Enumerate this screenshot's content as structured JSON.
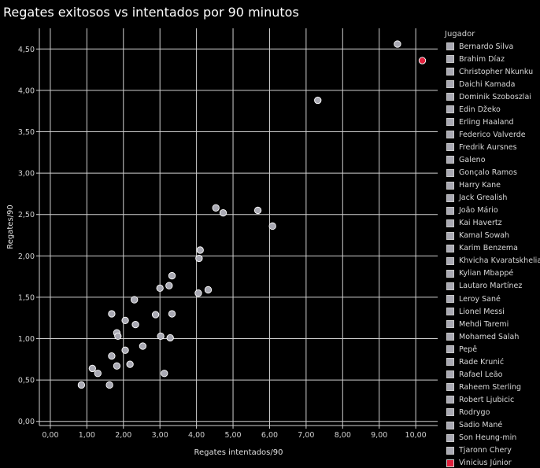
{
  "chart_data": {
    "type": "scatter",
    "title": "Regates exitosos vs intentados por 90 minutos",
    "xlabel": "Regates intentados/90",
    "ylabel": "Regates/90",
    "xlim": [
      -0.3,
      10.6
    ],
    "ylim": [
      -0.05,
      4.75
    ],
    "xticks": [
      "0,00",
      "1,00",
      "2,00",
      "3,00",
      "4,00",
      "5,00",
      "6,00",
      "7,00",
      "8,00",
      "9,00",
      "10,00"
    ],
    "yticks": [
      "0,00",
      "0,50",
      "1,00",
      "1,50",
      "2,00",
      "2,50",
      "3,00",
      "3,50",
      "4,00",
      "4,50"
    ],
    "grid": true,
    "legend_title": "Jugador",
    "legend_position": "right",
    "colors": {
      "default": "#a9a9b3",
      "highlight": "#e0203c",
      "grid": "#d0d0d0",
      "background": "#000000"
    },
    "players": [
      "Bernardo Silva",
      "Brahim Díaz",
      "Christopher Nkunku",
      "Daichi Kamada",
      "Dominik Szoboszlai",
      "Edin Džeko",
      "Erling Haaland",
      "Federico Valverde",
      "Fredrik Aursnes",
      "Galeno",
      "Gonçalo Ramos",
      "Harry Kane",
      "Jack Grealish",
      "João Mário",
      "Kai Havertz",
      "Kamal Sowah",
      "Karim Benzema",
      "Khvicha Kvaratskhelia",
      "Kylian Mbappé",
      "Lautaro Martínez",
      "Leroy Sané",
      "Lionel Messi",
      "Mehdi Taremi",
      "Mohamed Salah",
      "Pepê",
      "Rade Krunić",
      "Rafael Leão",
      "Raheem Sterling",
      "Robert Ljubicic",
      "Rodrygo",
      "Sadio Mané",
      "Son Heung-min",
      "Tjaronn Chery",
      "Vinicius Júnior"
    ],
    "highlighted": [
      "Vinicius Júnior"
    ],
    "points": [
      {
        "x": 9.5,
        "y": 4.56
      },
      {
        "x": 10.18,
        "y": 4.36,
        "highlight": true
      },
      {
        "x": 7.32,
        "y": 3.88
      },
      {
        "x": 4.53,
        "y": 2.58
      },
      {
        "x": 4.73,
        "y": 2.52
      },
      {
        "x": 5.68,
        "y": 2.55
      },
      {
        "x": 6.08,
        "y": 2.36
      },
      {
        "x": 4.1,
        "y": 2.07
      },
      {
        "x": 4.07,
        "y": 1.97
      },
      {
        "x": 3.33,
        "y": 1.76
      },
      {
        "x": 3.25,
        "y": 1.64
      },
      {
        "x": 3.0,
        "y": 1.61
      },
      {
        "x": 4.32,
        "y": 1.59
      },
      {
        "x": 4.05,
        "y": 1.55
      },
      {
        "x": 2.3,
        "y": 1.47
      },
      {
        "x": 1.68,
        "y": 1.3
      },
      {
        "x": 2.88,
        "y": 1.29
      },
      {
        "x": 3.33,
        "y": 1.3
      },
      {
        "x": 2.05,
        "y": 1.22
      },
      {
        "x": 2.33,
        "y": 1.17
      },
      {
        "x": 1.82,
        "y": 1.07
      },
      {
        "x": 1.85,
        "y": 1.03
      },
      {
        "x": 3.02,
        "y": 1.03
      },
      {
        "x": 3.28,
        "y": 1.01
      },
      {
        "x": 2.53,
        "y": 0.91
      },
      {
        "x": 2.05,
        "y": 0.86
      },
      {
        "x": 1.68,
        "y": 0.79
      },
      {
        "x": 1.82,
        "y": 0.67
      },
      {
        "x": 2.18,
        "y": 0.69
      },
      {
        "x": 1.15,
        "y": 0.64
      },
      {
        "x": 1.3,
        "y": 0.58
      },
      {
        "x": 3.12,
        "y": 0.58
      },
      {
        "x": 0.85,
        "y": 0.44
      },
      {
        "x": 1.62,
        "y": 0.44
      }
    ]
  }
}
